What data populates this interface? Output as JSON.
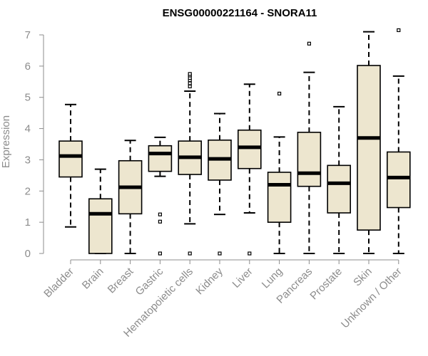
{
  "chart_data": {
    "type": "boxplot",
    "title": "ENSG00000221164 - SNORA11",
    "xlabel": "",
    "ylabel": "Expression",
    "ylim": [
      0,
      7
    ],
    "yticks": [
      0,
      1,
      2,
      3,
      4,
      5,
      6,
      7
    ],
    "box_fill": "#ede6cf",
    "categories": [
      "Bladder",
      "Brain",
      "Breast",
      "Gastric",
      "Hematopoietic cells",
      "Kidney",
      "Liver",
      "Lung",
      "Pancreas",
      "Prostate",
      "Skin",
      "Unknown / Other"
    ],
    "boxes": [
      {
        "name": "Bladder",
        "whisker_low": 0.85,
        "q1": 2.45,
        "median": 3.12,
        "q3": 3.6,
        "whisker_high": 4.77,
        "outliers": []
      },
      {
        "name": "Brain",
        "whisker_low": 0.0,
        "q1": 0.0,
        "median": 1.27,
        "q3": 1.75,
        "whisker_high": 2.7,
        "outliers": []
      },
      {
        "name": "Breast",
        "whisker_low": 0.0,
        "q1": 1.27,
        "median": 2.12,
        "q3": 2.97,
        "whisker_high": 3.62,
        "outliers": []
      },
      {
        "name": "Gastric",
        "whisker_low": 2.47,
        "q1": 2.63,
        "median": 3.2,
        "q3": 3.45,
        "whisker_high": 3.72,
        "outliers": [
          1.25,
          1.02,
          0.0
        ]
      },
      {
        "name": "Hematopoietic cells",
        "whisker_low": 0.95,
        "q1": 2.53,
        "median": 3.08,
        "q3": 3.6,
        "whisker_high": 5.2,
        "outliers": [
          5.35,
          5.45,
          5.55,
          5.62,
          5.7,
          5.75,
          0.0
        ]
      },
      {
        "name": "Kidney",
        "whisker_low": 1.25,
        "q1": 2.35,
        "median": 3.03,
        "q3": 3.63,
        "whisker_high": 4.48,
        "outliers": [
          0.0
        ]
      },
      {
        "name": "Liver",
        "whisker_low": 1.3,
        "q1": 2.72,
        "median": 3.4,
        "q3": 3.95,
        "whisker_high": 5.42,
        "outliers": [
          0.0
        ]
      },
      {
        "name": "Lung",
        "whisker_low": 0.0,
        "q1": 1.0,
        "median": 2.2,
        "q3": 2.6,
        "whisker_high": 3.73,
        "outliers": [
          5.12
        ]
      },
      {
        "name": "Pancreas",
        "whisker_low": 0.0,
        "q1": 2.15,
        "median": 2.57,
        "q3": 3.88,
        "whisker_high": 5.8,
        "outliers": [
          6.72
        ]
      },
      {
        "name": "Prostate",
        "whisker_low": 0.0,
        "q1": 1.3,
        "median": 2.25,
        "q3": 2.82,
        "whisker_high": 4.7,
        "outliers": []
      },
      {
        "name": "Skin",
        "whisker_low": 0.0,
        "q1": 0.75,
        "median": 3.7,
        "q3": 6.02,
        "whisker_high": 7.1,
        "outliers": []
      },
      {
        "name": "Unknown / Other",
        "whisker_low": 0.0,
        "q1": 1.47,
        "median": 2.43,
        "q3": 3.25,
        "whisker_high": 5.68,
        "outliers": [
          7.15
        ]
      }
    ]
  }
}
